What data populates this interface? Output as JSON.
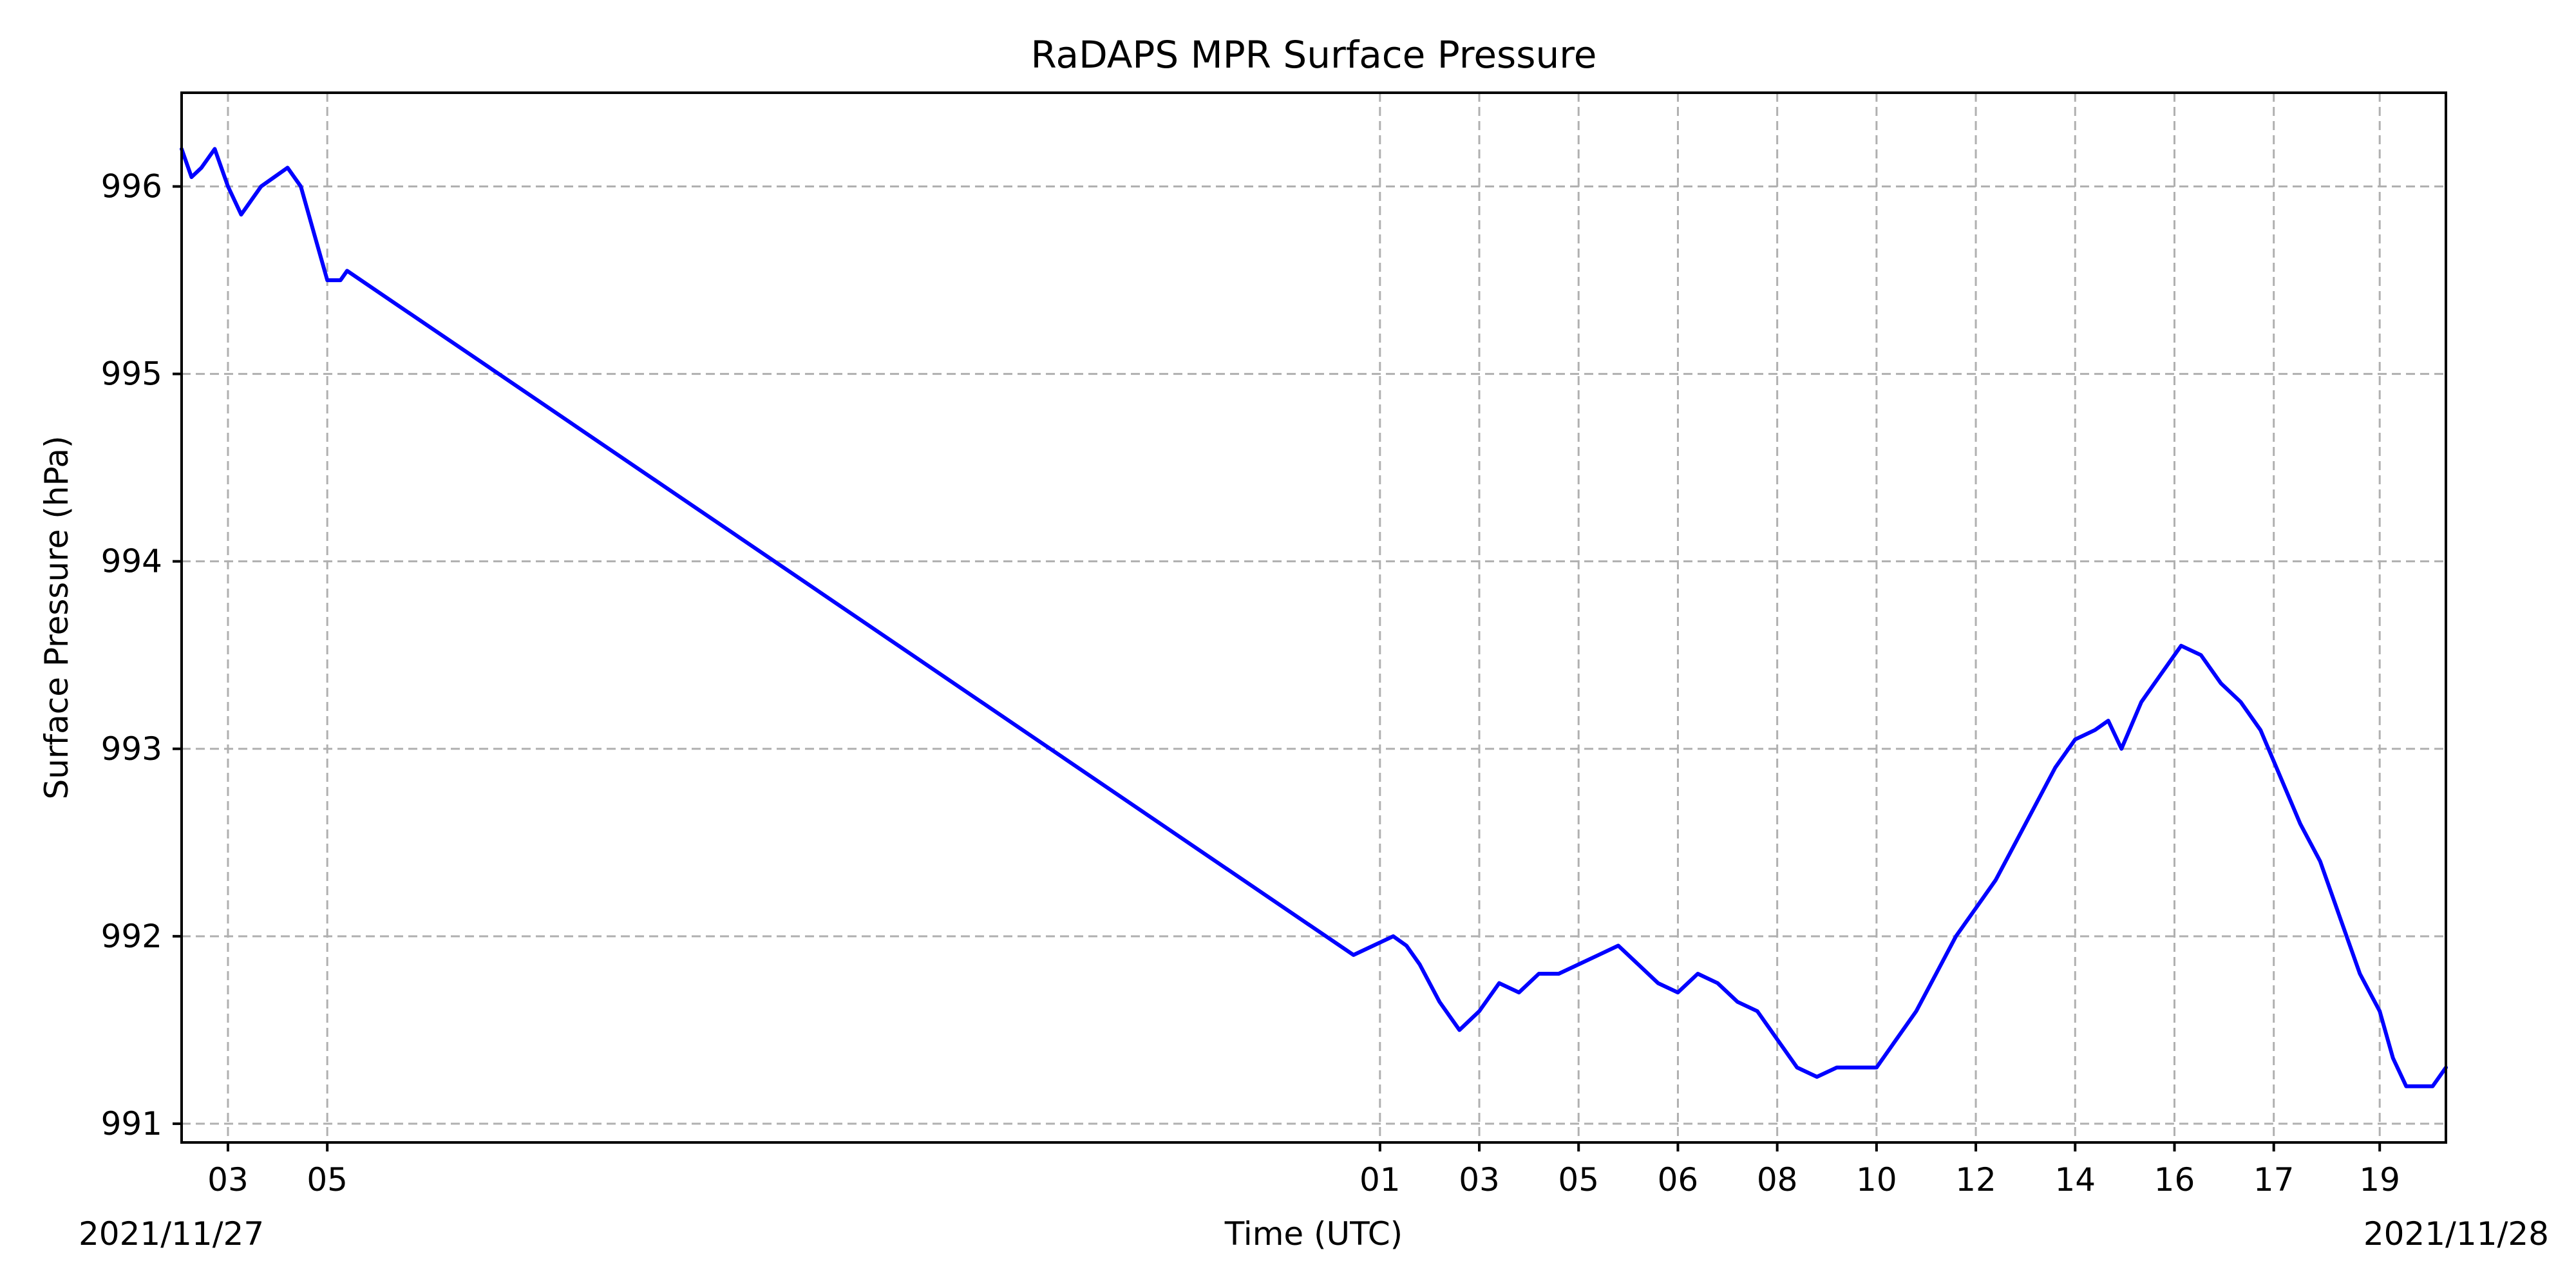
{
  "chart_data": {
    "type": "line",
    "title": "RaDAPS MPR Surface Pressure",
    "xlabel": "Time (UTC)",
    "ylabel": "Surface Pressure (hPa)",
    "x_unit": "hours (UTC) from 2021/11/27 00:00",
    "xlim": [
      27.3,
      61.5
    ],
    "ylim": [
      990.9,
      996.5
    ],
    "grid": true,
    "y_ticks": [
      991,
      992,
      993,
      994,
      995,
      996
    ],
    "x_ticks": [
      {
        "x": 28.0,
        "label": "03"
      },
      {
        "x": 29.5,
        "label": "05"
      },
      {
        "x": 45.4,
        "label": "01"
      },
      {
        "x": 46.9,
        "label": "03"
      },
      {
        "x": 48.4,
        "label": "05"
      },
      {
        "x": 49.9,
        "label": "06"
      },
      {
        "x": 51.4,
        "label": "08"
      },
      {
        "x": 52.9,
        "label": "10"
      },
      {
        "x": 54.4,
        "label": "12"
      },
      {
        "x": 55.9,
        "label": "14"
      },
      {
        "x": 57.4,
        "label": "16"
      },
      {
        "x": 58.9,
        "label": "17"
      },
      {
        "x": 60.5,
        "label": "19"
      }
    ],
    "date_labels": {
      "left": "2021/11/27",
      "right": "2021/11/28"
    },
    "series": [
      {
        "color": "#0000ff",
        "x": [
          27.3,
          27.45,
          27.6,
          27.8,
          28.0,
          28.2,
          28.5,
          28.7,
          28.9,
          29.1,
          29.3,
          29.5,
          29.7,
          29.8,
          45.0,
          45.3,
          45.6,
          45.8,
          46.0,
          46.3,
          46.6,
          46.9,
          47.2,
          47.5,
          47.8,
          48.1,
          48.4,
          48.7,
          49.0,
          49.3,
          49.6,
          49.9,
          50.2,
          50.5,
          50.8,
          51.1,
          51.4,
          51.7,
          52.0,
          52.3,
          52.6,
          52.9,
          53.2,
          53.5,
          53.8,
          54.1,
          54.4,
          54.7,
          55.0,
          55.3,
          55.6,
          55.9,
          56.2,
          56.4,
          56.6,
          56.9,
          57.2,
          57.5,
          57.8,
          58.1,
          58.4,
          58.7,
          59.0,
          59.3,
          59.6,
          59.9,
          60.2,
          60.5,
          60.7,
          60.9,
          61.1,
          61.3,
          61.5
        ],
        "values": [
          996.2,
          996.05,
          996.1,
          996.2,
          996.0,
          995.85,
          996.0,
          996.05,
          996.1,
          996.0,
          995.75,
          995.5,
          995.5,
          995.55,
          991.9,
          991.95,
          992.0,
          991.95,
          991.85,
          991.65,
          991.5,
          991.6,
          991.75,
          991.7,
          991.8,
          991.8,
          991.85,
          991.9,
          991.95,
          991.85,
          991.75,
          991.7,
          991.8,
          991.75,
          991.65,
          991.6,
          991.45,
          991.3,
          991.25,
          991.3,
          991.3,
          991.3,
          991.45,
          991.6,
          991.8,
          992.0,
          992.15,
          992.3,
          992.5,
          992.7,
          992.9,
          993.05,
          993.1,
          993.15,
          993.0,
          993.25,
          993.4,
          993.55,
          993.5,
          993.35,
          993.25,
          993.1,
          992.85,
          992.6,
          992.4,
          992.1,
          991.8,
          991.6,
          991.35,
          991.2,
          991.2,
          991.2,
          991.3
        ]
      }
    ]
  }
}
